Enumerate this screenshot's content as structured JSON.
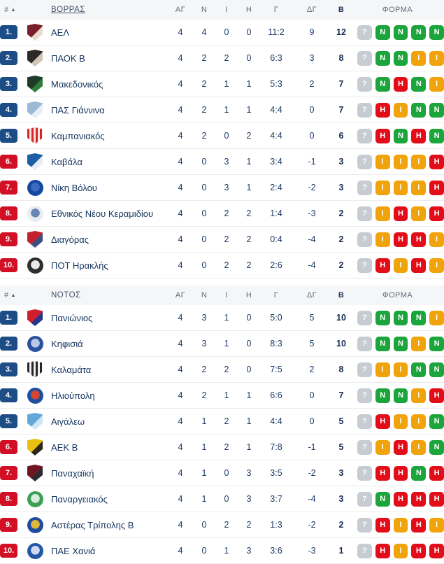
{
  "colors": {
    "position_zone_blue": "#1d4d87",
    "position_zone_red": "#d30f26",
    "form": {
      "?": "#c6ccd2",
      "N": "#1ca53c",
      "H": "#e20d18",
      "I": "#f0a30a"
    },
    "header_background": "#f5f6f7",
    "row_text": "#16355e"
  },
  "columns": {
    "hash": "#",
    "sort_icon": "▲",
    "stats": [
      "ΑΓ",
      "Ν",
      "Ι",
      "Η",
      "Γ",
      "ΔΓ",
      "Β"
    ],
    "form": "ΦΟΡΜΑ"
  },
  "sections": [
    {
      "name": "ΒΟΡΡΑΣ",
      "underlined": true,
      "rows": [
        {
          "pos": "1.",
          "zone": "blue",
          "team": "ΑΕΛ",
          "logo": {
            "shape": "shield",
            "pattern": "solid",
            "colors": [
              "#7c1f2d",
              "#e8dccf"
            ]
          },
          "stats": [
            "4",
            "4",
            "0",
            "0",
            "11:2",
            "9",
            "12"
          ],
          "form": [
            "?",
            "N",
            "N",
            "N",
            "N"
          ]
        },
        {
          "pos": "2.",
          "zone": "blue",
          "team": "ΠΑΟΚ Β",
          "logo": {
            "shape": "shield",
            "pattern": "solid",
            "colors": [
              "#2b2a28",
              "#cfc6b8"
            ]
          },
          "stats": [
            "4",
            "2",
            "2",
            "0",
            "6:3",
            "3",
            "8"
          ],
          "form": [
            "?",
            "N",
            "N",
            "I",
            "I"
          ]
        },
        {
          "pos": "3.",
          "zone": "blue",
          "team": "Μακεδονικός",
          "logo": {
            "shape": "shield",
            "pattern": "solid",
            "colors": [
              "#1e3b28",
              "#2f7d3a"
            ]
          },
          "stats": [
            "4",
            "2",
            "1",
            "1",
            "5:3",
            "2",
            "7"
          ],
          "form": [
            "?",
            "N",
            "H",
            "N",
            "I"
          ]
        },
        {
          "pos": "4.",
          "zone": "blue",
          "team": "ΠΑΣ Γιάννινα",
          "logo": {
            "shape": "shield",
            "pattern": "solid",
            "colors": [
              "#9db9d6",
              "#e9eef5"
            ]
          },
          "stats": [
            "4",
            "2",
            "1",
            "1",
            "4:4",
            "0",
            "7"
          ],
          "form": [
            "?",
            "H",
            "I",
            "N",
            "N"
          ]
        },
        {
          "pos": "5.",
          "zone": "blue",
          "team": "Καμπανιακός",
          "logo": {
            "shape": "shield",
            "pattern": "stripes",
            "colors": [
              "#d6252b",
              "#f3e9e2"
            ]
          },
          "stats": [
            "4",
            "2",
            "0",
            "2",
            "4:4",
            "0",
            "6"
          ],
          "form": [
            "?",
            "H",
            "N",
            "H",
            "N"
          ]
        },
        {
          "pos": "6.",
          "zone": "red",
          "team": "Καβάλα",
          "logo": {
            "shape": "shield",
            "pattern": "solid",
            "colors": [
              "#1d5ea6",
              "#e7edf4"
            ]
          },
          "stats": [
            "4",
            "0",
            "3",
            "1",
            "3:4",
            "-1",
            "3"
          ],
          "form": [
            "?",
            "I",
            "I",
            "I",
            "H"
          ]
        },
        {
          "pos": "7.",
          "zone": "red",
          "team": "Νίκη Βόλου",
          "logo": {
            "shape": "circle",
            "pattern": "solid",
            "colors": [
              "#15489e",
              "#3a6bc0"
            ]
          },
          "stats": [
            "4",
            "0",
            "3",
            "1",
            "2:4",
            "-2",
            "3"
          ],
          "form": [
            "?",
            "I",
            "I",
            "I",
            "H"
          ]
        },
        {
          "pos": "8.",
          "zone": "red",
          "team": "Εθνικός Νέου Κεραμιδίου",
          "logo": {
            "shape": "circle",
            "pattern": "solid",
            "colors": [
              "#e9edf2",
              "#6b85b3"
            ]
          },
          "stats": [
            "4",
            "0",
            "2",
            "2",
            "1:4",
            "-3",
            "2"
          ],
          "form": [
            "?",
            "I",
            "H",
            "I",
            "H"
          ]
        },
        {
          "pos": "9.",
          "zone": "red",
          "team": "Διαγόρας",
          "logo": {
            "shape": "shield",
            "pattern": "solid",
            "colors": [
              "#c2242f",
              "#3a4f86"
            ]
          },
          "stats": [
            "4",
            "0",
            "2",
            "2",
            "0:4",
            "-4",
            "2"
          ],
          "form": [
            "?",
            "I",
            "H",
            "H",
            "I"
          ]
        },
        {
          "pos": "10.",
          "zone": "red",
          "team": "ΠΟΤ Ηρακλής",
          "logo": {
            "shape": "circle",
            "pattern": "solid",
            "colors": [
              "#2d2d2d",
              "#e8e8e8"
            ]
          },
          "stats": [
            "4",
            "0",
            "2",
            "2",
            "2:6",
            "-4",
            "2"
          ],
          "form": [
            "?",
            "H",
            "I",
            "H",
            "I"
          ]
        }
      ]
    },
    {
      "name": "ΝΟΤΟΣ",
      "underlined": false,
      "rows": [
        {
          "pos": "1.",
          "zone": "blue",
          "team": "Πανιώνιος",
          "logo": {
            "shape": "shield",
            "pattern": "solid",
            "colors": [
              "#cf1f2e",
              "#27358c"
            ]
          },
          "stats": [
            "4",
            "3",
            "1",
            "0",
            "5:0",
            "5",
            "10"
          ],
          "form": [
            "?",
            "N",
            "N",
            "N",
            "I"
          ]
        },
        {
          "pos": "2.",
          "zone": "blue",
          "team": "Κηφισιά",
          "logo": {
            "shape": "circle",
            "pattern": "solid",
            "colors": [
              "#2c4f9e",
              "#b9c8e4"
            ]
          },
          "stats": [
            "4",
            "3",
            "1",
            "0",
            "8:3",
            "5",
            "10"
          ],
          "form": [
            "?",
            "N",
            "N",
            "I",
            "N"
          ]
        },
        {
          "pos": "3.",
          "zone": "blue",
          "team": "Καλαμάτα",
          "logo": {
            "shape": "shield",
            "pattern": "stripes",
            "colors": [
              "#26262a",
              "#efefef"
            ]
          },
          "stats": [
            "4",
            "2",
            "2",
            "0",
            "7:5",
            "2",
            "8"
          ],
          "form": [
            "?",
            "I",
            "I",
            "N",
            "N"
          ]
        },
        {
          "pos": "4.",
          "zone": "blue",
          "team": "Ηλιούπολη",
          "logo": {
            "shape": "circle",
            "pattern": "solid",
            "colors": [
              "#1d4f9e",
              "#d8452f"
            ]
          },
          "stats": [
            "4",
            "2",
            "1",
            "1",
            "6:6",
            "0",
            "7"
          ],
          "form": [
            "?",
            "N",
            "N",
            "I",
            "H"
          ]
        },
        {
          "pos": "5.",
          "zone": "blue",
          "team": "Αιγάλεω",
          "logo": {
            "shape": "shield",
            "pattern": "solid",
            "colors": [
              "#63a8d8",
              "#cfe6f5"
            ]
          },
          "stats": [
            "4",
            "1",
            "2",
            "1",
            "4:4",
            "0",
            "5"
          ],
          "form": [
            "?",
            "H",
            "I",
            "I",
            "N"
          ]
        },
        {
          "pos": "6.",
          "zone": "red",
          "team": "ΑΕΚ Β",
          "logo": {
            "shape": "shield",
            "pattern": "solid",
            "colors": [
              "#e8c011",
              "#2c2618"
            ]
          },
          "stats": [
            "4",
            "1",
            "2",
            "1",
            "7:8",
            "-1",
            "5"
          ],
          "form": [
            "?",
            "I",
            "H",
            "I",
            "N"
          ]
        },
        {
          "pos": "7.",
          "zone": "red",
          "team": "Παναχαϊκή",
          "logo": {
            "shape": "shield",
            "pattern": "solid",
            "colors": [
              "#6e1622",
              "#2e2a31"
            ]
          },
          "stats": [
            "4",
            "1",
            "0",
            "3",
            "3:5",
            "-2",
            "3"
          ],
          "form": [
            "?",
            "H",
            "H",
            "N",
            "H"
          ]
        },
        {
          "pos": "8.",
          "zone": "red",
          "team": "Παναργειακός",
          "logo": {
            "shape": "circle",
            "pattern": "solid",
            "colors": [
              "#3f9e55",
              "#d9ecdd"
            ]
          },
          "stats": [
            "4",
            "1",
            "0",
            "3",
            "3:7",
            "-4",
            "3"
          ],
          "form": [
            "?",
            "N",
            "H",
            "H",
            "H"
          ]
        },
        {
          "pos": "9.",
          "zone": "red",
          "team": "Αστέρας Τρίπολης Β",
          "logo": {
            "shape": "circle",
            "pattern": "solid",
            "colors": [
              "#1f4c9c",
              "#e0b73c"
            ]
          },
          "stats": [
            "4",
            "0",
            "2",
            "2",
            "1:3",
            "-2",
            "2"
          ],
          "form": [
            "?",
            "H",
            "I",
            "H",
            "I"
          ]
        },
        {
          "pos": "10.",
          "zone": "red",
          "team": "ΠΑΕ Χανιά",
          "logo": {
            "shape": "circle",
            "pattern": "solid",
            "colors": [
              "#2456a8",
              "#cfdcf0"
            ]
          },
          "stats": [
            "4",
            "0",
            "1",
            "3",
            "3:6",
            "-3",
            "1"
          ],
          "form": [
            "?",
            "H",
            "I",
            "H",
            "H"
          ]
        }
      ]
    }
  ]
}
